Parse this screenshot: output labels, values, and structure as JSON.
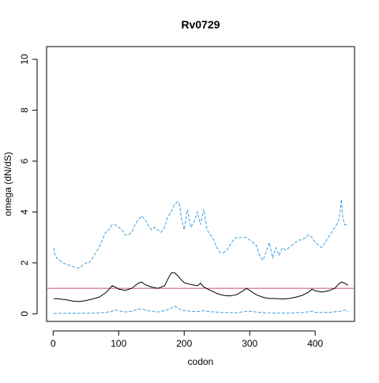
{
  "chart_data": {
    "type": "line",
    "title": "Rv0729",
    "xlabel": "codon",
    "ylabel": "omega (dN/dS)",
    "xlim": [
      -10,
      460
    ],
    "ylim": [
      -0.3,
      10.5
    ],
    "xticks": [
      0,
      100,
      200,
      300,
      400
    ],
    "yticks": [
      0,
      2,
      4,
      6,
      8,
      10
    ],
    "grid": false,
    "legend": "none",
    "reference_line": {
      "y": 1,
      "color": "#c0508a"
    },
    "series": [
      {
        "style": "dashed",
        "color": "#3ea0e0",
        "x": [
          1,
          3,
          5,
          10,
          15,
          20,
          25,
          30,
          35,
          40,
          45,
          50,
          55,
          60,
          65,
          70,
          75,
          80,
          85,
          90,
          95,
          100,
          105,
          110,
          115,
          120,
          125,
          130,
          135,
          140,
          145,
          150,
          155,
          160,
          165,
          170,
          175,
          180,
          185,
          190,
          193,
          196,
          200,
          205,
          210,
          215,
          220,
          225,
          230,
          235,
          240,
          245,
          250,
          255,
          260,
          265,
          270,
          275,
          280,
          285,
          290,
          295,
          300,
          305,
          310,
          315,
          320,
          325,
          330,
          335,
          340,
          345,
          350,
          355,
          360,
          365,
          370,
          375,
          380,
          385,
          390,
          395,
          400,
          405,
          410,
          415,
          420,
          425,
          430,
          435,
          438,
          440,
          442,
          445,
          450
        ],
        "y": [
          2.6,
          2.3,
          2.2,
          2.1,
          2.0,
          1.95,
          1.9,
          1.85,
          1.8,
          1.8,
          1.9,
          2.0,
          2.0,
          2.2,
          2.4,
          2.6,
          2.9,
          3.2,
          3.3,
          3.5,
          3.5,
          3.4,
          3.3,
          3.1,
          3.1,
          3.2,
          3.5,
          3.7,
          3.85,
          3.7,
          3.5,
          3.3,
          3.4,
          3.3,
          3.2,
          3.4,
          3.8,
          4.0,
          4.3,
          4.4,
          4.3,
          3.7,
          3.3,
          4.1,
          3.4,
          3.6,
          4.0,
          3.5,
          4.1,
          3.3,
          3.1,
          2.9,
          2.6,
          2.4,
          2.4,
          2.5,
          2.7,
          2.9,
          3.0,
          3.0,
          3.0,
          3.0,
          2.9,
          2.8,
          2.7,
          2.3,
          2.1,
          2.4,
          2.8,
          2.2,
          2.6,
          2.3,
          2.6,
          2.5,
          2.6,
          2.7,
          2.8,
          2.9,
          2.9,
          3.0,
          3.1,
          3.0,
          2.8,
          2.7,
          2.6,
          2.8,
          3.0,
          3.2,
          3.4,
          3.6,
          4.0,
          4.5,
          3.8,
          3.5,
          3.5
        ]
      },
      {
        "style": "solid",
        "color": "#000000",
        "x": [
          1,
          10,
          20,
          30,
          40,
          50,
          60,
          70,
          80,
          85,
          90,
          95,
          100,
          110,
          120,
          125,
          130,
          135,
          140,
          150,
          160,
          170,
          175,
          180,
          185,
          190,
          195,
          200,
          210,
          220,
          225,
          230,
          240,
          250,
          260,
          270,
          280,
          290,
          295,
          300,
          310,
          320,
          330,
          340,
          350,
          360,
          370,
          380,
          390,
          395,
          400,
          410,
          420,
          430,
          435,
          440,
          445,
          450
        ],
        "y": [
          0.6,
          0.58,
          0.55,
          0.5,
          0.48,
          0.52,
          0.58,
          0.65,
          0.82,
          0.95,
          1.1,
          1.05,
          0.97,
          0.92,
          1.0,
          1.1,
          1.2,
          1.25,
          1.15,
          1.05,
          1.0,
          1.1,
          1.35,
          1.6,
          1.62,
          1.5,
          1.35,
          1.22,
          1.15,
          1.1,
          1.2,
          1.05,
          0.92,
          0.8,
          0.72,
          0.7,
          0.75,
          0.9,
          1.0,
          0.92,
          0.75,
          0.65,
          0.6,
          0.6,
          0.58,
          0.6,
          0.65,
          0.72,
          0.85,
          0.97,
          0.9,
          0.85,
          0.9,
          1.0,
          1.15,
          1.25,
          1.2,
          1.12
        ]
      },
      {
        "style": "dashed",
        "color": "#3ea0e0",
        "x": [
          1,
          20,
          40,
          60,
          80,
          90,
          95,
          100,
          110,
          120,
          130,
          135,
          140,
          150,
          160,
          170,
          180,
          185,
          190,
          195,
          200,
          220,
          230,
          240,
          260,
          280,
          290,
          300,
          320,
          340,
          360,
          380,
          390,
          395,
          400,
          420,
          440,
          445,
          450
        ],
        "y": [
          0.02,
          0.02,
          0.02,
          0.03,
          0.05,
          0.1,
          0.15,
          0.12,
          0.07,
          0.1,
          0.18,
          0.2,
          0.15,
          0.1,
          0.07,
          0.12,
          0.22,
          0.3,
          0.25,
          0.15,
          0.12,
          0.08,
          0.12,
          0.08,
          0.05,
          0.04,
          0.08,
          0.1,
          0.04,
          0.03,
          0.03,
          0.05,
          0.08,
          0.1,
          0.06,
          0.05,
          0.1,
          0.15,
          0.08
        ]
      }
    ]
  }
}
